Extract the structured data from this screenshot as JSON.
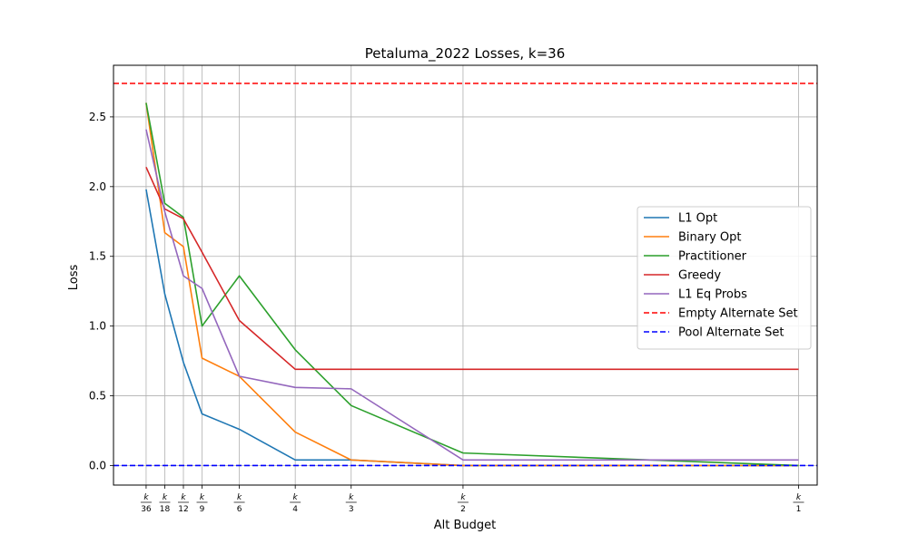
{
  "chart_data": {
    "type": "line",
    "title": "Petaluma_2022 Losses, k=36",
    "xlabel": "Alt Budget",
    "ylabel": "Loss",
    "x": [
      1,
      2,
      3,
      4,
      6,
      9,
      12,
      18,
      36
    ],
    "x_tick_labels": [
      {
        "num": "k",
        "den": "36"
      },
      {
        "num": "k",
        "den": "18"
      },
      {
        "num": "k",
        "den": "12"
      },
      {
        "num": "k",
        "den": "9"
      },
      {
        "num": "k",
        "den": "6"
      },
      {
        "num": "k",
        "den": "4"
      },
      {
        "num": "k",
        "den": "3"
      },
      {
        "num": "k",
        "den": "2"
      },
      {
        "num": "k",
        "den": "1"
      }
    ],
    "xlim": [
      -0.75,
      37.0
    ],
    "ylim": [
      -0.14,
      2.87
    ],
    "y_ticks": [
      0.0,
      0.5,
      1.0,
      1.5,
      2.0,
      2.5
    ],
    "y_tick_labels": [
      "0.0",
      "0.5",
      "1.0",
      "1.5",
      "2.0",
      "2.5"
    ],
    "grid": true,
    "legend_position": "center-right",
    "series": [
      {
        "name": "L1 Opt",
        "color": "#1f77b4",
        "style": "solid",
        "values": [
          1.98,
          1.23,
          0.74,
          0.37,
          0.26,
          0.04,
          0.04,
          0.0,
          0.0
        ]
      },
      {
        "name": "Binary Opt",
        "color": "#ff7f0e",
        "style": "solid",
        "values": [
          2.6,
          1.67,
          1.57,
          0.77,
          0.64,
          0.24,
          0.04,
          0.0,
          0.0
        ]
      },
      {
        "name": "Practitioner",
        "color": "#2ca02c",
        "style": "solid",
        "values": [
          2.6,
          1.88,
          1.78,
          1.0,
          1.36,
          0.83,
          0.43,
          0.09,
          0.0
        ]
      },
      {
        "name": "Greedy",
        "color": "#d62728",
        "style": "solid",
        "values": [
          2.14,
          1.84,
          1.77,
          1.53,
          1.04,
          0.69,
          0.69,
          0.69,
          0.69
        ]
      },
      {
        "name": "L1 Eq Probs",
        "color": "#9467bd",
        "style": "solid",
        "values": [
          2.41,
          1.82,
          1.36,
          1.27,
          0.64,
          0.56,
          0.55,
          0.04,
          0.04
        ]
      },
      {
        "name": "Empty Alternate Set",
        "color": "#ff0000",
        "style": "dashed",
        "hline": 2.74
      },
      {
        "name": "Pool Alternate Set",
        "color": "#0000ff",
        "style": "dashed",
        "hline": 0.0
      }
    ]
  }
}
